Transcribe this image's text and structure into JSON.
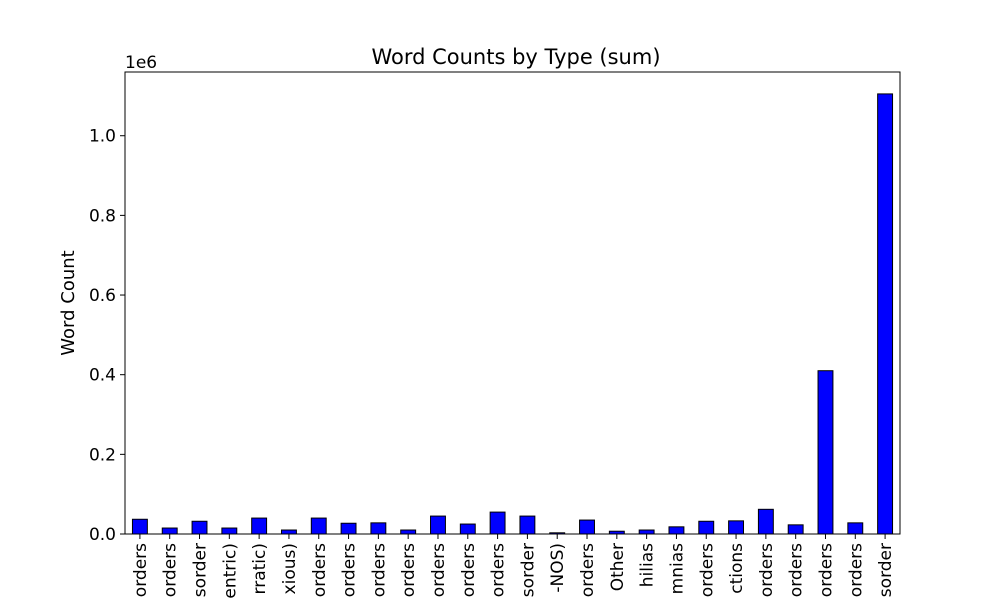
{
  "chart_data": {
    "type": "bar",
    "title": "Word Counts by Type (sum)",
    "xlabel": "",
    "ylabel": "Word Count",
    "offset_text": "1e6",
    "ylim": [
      0,
      1160000
    ],
    "yticks": [
      0.0,
      0.2,
      0.4,
      0.6,
      0.8,
      1.0
    ],
    "ytick_labels": [
      "0.0",
      "0.2",
      "0.4",
      "0.6",
      "0.8",
      "1.0"
    ],
    "ytick_scale": 1000000,
    "grid": false,
    "legend": "none",
    "bar_color": "#0000ff",
    "edge_color": "#000000",
    "categories": [
      "orders",
      "orders",
      "sorder",
      "entric)",
      "rratic)",
      "xious)",
      "orders",
      "orders",
      "orders",
      "orders",
      "orders",
      "orders",
      "orders",
      "sorder",
      "-NOS)",
      "orders",
      "Other",
      "hilias",
      "mnias",
      "orders",
      "ctions",
      "orders",
      "orders",
      "orders",
      "orders",
      "sorder"
    ],
    "values": [
      37000,
      15000,
      32000,
      15000,
      40000,
      10000,
      40000,
      27000,
      28000,
      10000,
      45000,
      25000,
      55000,
      45000,
      3000,
      35000,
      7000,
      10000,
      18000,
      32000,
      33000,
      62000,
      23000,
      410000,
      28000,
      1105000
    ]
  }
}
